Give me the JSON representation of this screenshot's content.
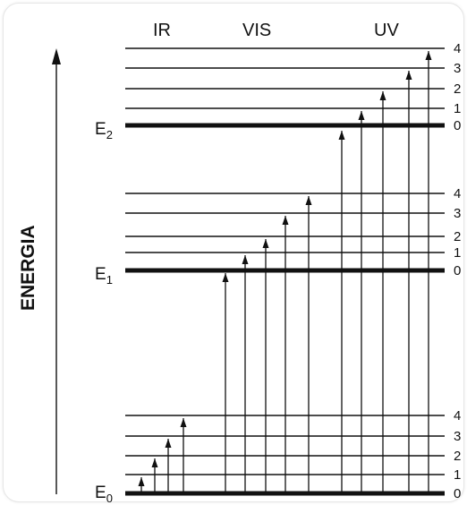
{
  "y_axis": {
    "label": "ENERGIA"
  },
  "regions": [
    "IR",
    "VIS",
    "UV"
  ],
  "electronic_levels": [
    {
      "symbol": "E",
      "subscript": "2",
      "vibrational_levels": [
        "0",
        "1",
        "2",
        "3",
        "4"
      ]
    },
    {
      "symbol": "E",
      "subscript": "1",
      "vibrational_levels": [
        "0",
        "1",
        "2",
        "3",
        "4"
      ]
    },
    {
      "symbol": "E",
      "subscript": "0",
      "vibrational_levels": [
        "0",
        "1",
        "2",
        "3",
        "4"
      ]
    }
  ],
  "transitions": {
    "ir": {
      "from": "E0 v0",
      "to": [
        "E0 v1",
        "E0 v2",
        "E0 v3",
        "E0 v4"
      ]
    },
    "vis": {
      "from": "E0 v0",
      "to": [
        "E1 v0",
        "E1 v1",
        "E1 v2",
        "E1 v3",
        "E1 v4"
      ]
    },
    "uv": {
      "from": "E0 v0",
      "to": [
        "E2 v0",
        "E2 v1",
        "E2 v2",
        "E2 v3",
        "E2 v4"
      ]
    }
  }
}
